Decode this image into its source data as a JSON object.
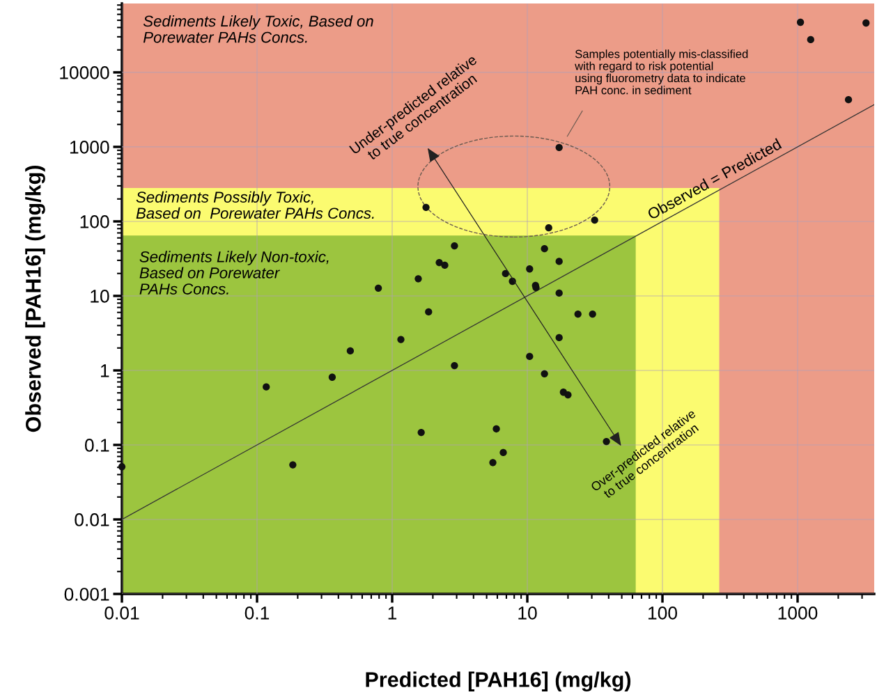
{
  "chart_data": {
    "type": "scatter",
    "xlabel": "Predicted [PAH16] (mg/kg)",
    "ylabel": "Observed [PAH16] (mg/kg)",
    "log": "xy",
    "grid": true,
    "xlim": [
      0.01,
      3690
    ],
    "ylim": [
      0.001,
      84000
    ],
    "xticks": [
      0.01,
      0.1,
      1,
      10,
      100,
      1000
    ],
    "yticks": [
      0.001,
      0.01,
      0.1,
      1,
      10,
      100,
      1000,
      10000
    ],
    "series": [
      {
        "type": "line",
        "color": "#333333",
        "line_style": "solid",
        "x": [
          0.01,
          3690
        ],
        "values": [
          0.01,
          3690
        ]
      },
      {
        "color": "#111111",
        "marker": "circle",
        "x": [
          0.01,
          0.117,
          0.184,
          0.36,
          0.49,
          0.79,
          1.16,
          1.56,
          1.64,
          1.78,
          1.86,
          2.23,
          2.45,
          2.89,
          2.89,
          5.56,
          5.9,
          6.64,
          6.9,
          7.76,
          10.4,
          10.4,
          11.5,
          11.6,
          13.4,
          13.4,
          14.4,
          17.2,
          17.2,
          17.2,
          17.2,
          18.5,
          20,
          23.7,
          30.4,
          31.5,
          38.5,
          1050,
          1250,
          2380,
          3210
        ],
        "values": [
          0.051,
          0.6,
          0.054,
          0.81,
          1.83,
          12.7,
          2.6,
          17,
          0.147,
          154,
          6.1,
          28,
          25.8,
          47,
          1.16,
          0.058,
          0.164,
          0.079,
          19.9,
          15.7,
          23,
          1.54,
          13.8,
          12.9,
          0.9,
          43,
          82,
          980,
          29,
          10.9,
          2.75,
          0.51,
          0.47,
          5.7,
          5.7,
          104,
          0.111,
          47000,
          27500,
          4300,
          46000
        ]
      }
    ],
    "annotations": [
      "Under-predicted relative\nto true concentration",
      "Over-predicted relative\nto true concentration",
      "Sediments Likely Toxic, Based on\nPorewater PAHs Concs.",
      "Sediments Possibly Toxic,\nBased on  Porewater PAHs Concs.",
      "Sediments Likely Non-toxic,\nBased on Porewater\nPAHs Concs.",
      {
        "text": "Observed = Predicted",
        "x": 260,
        "y": 260
      },
      "Samples potentially mis-classified\nwith regard to risk potential\nusing fluorometry data to indicate\nPAH conc. in sediment"
    ]
  }
}
